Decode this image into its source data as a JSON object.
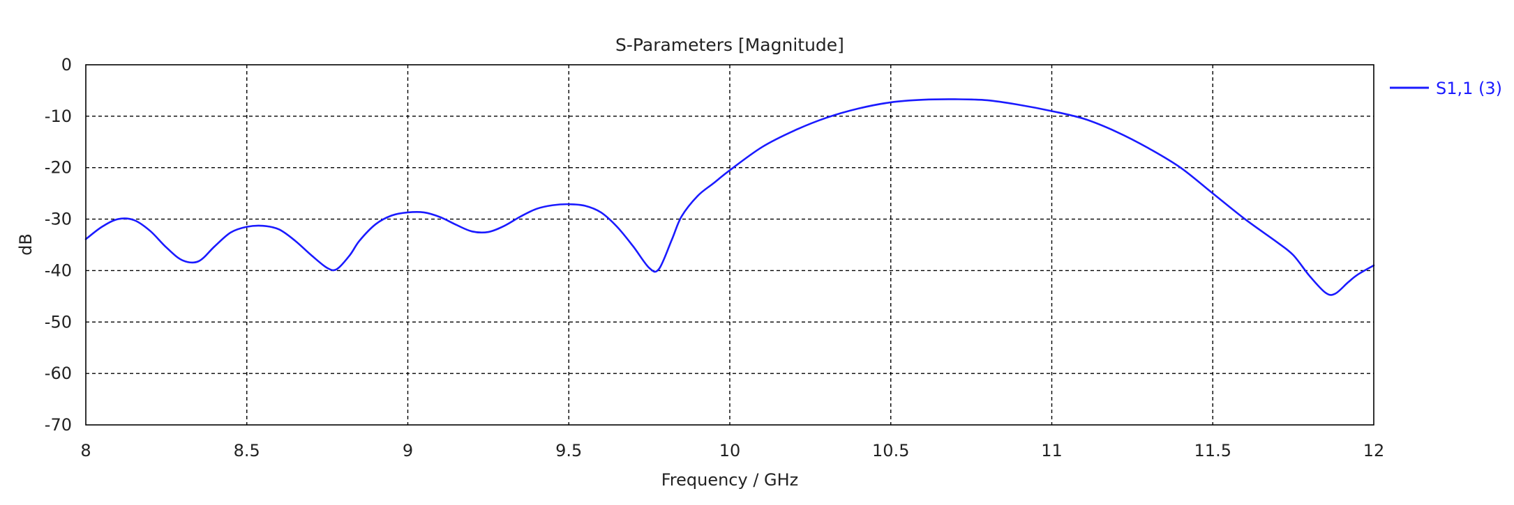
{
  "chart_data": {
    "type": "line",
    "title": "S-Parameters [Magnitude]",
    "xlabel": "Frequency / GHz",
    "ylabel": "dB",
    "xlim": [
      8,
      12
    ],
    "ylim": [
      -70,
      0
    ],
    "xticks": [
      8,
      8.5,
      9,
      9.5,
      10,
      10.5,
      11,
      11.5,
      12
    ],
    "xtick_labels": [
      "8",
      "8.5",
      "9",
      "9.5",
      "10",
      "10.5",
      "11",
      "11.5",
      "12"
    ],
    "yticks": [
      0,
      -10,
      -20,
      -30,
      -40,
      -50,
      -60,
      -70
    ],
    "ytick_labels": [
      "0",
      "-10",
      "-20",
      "-30",
      "-40",
      "-50",
      "-60",
      "-70"
    ],
    "grid": true,
    "legend_position": "right",
    "series": [
      {
        "name": "S1,1 (3)",
        "color": "#1a1aff",
        "x": [
          8.0,
          8.05,
          8.1,
          8.15,
          8.2,
          8.25,
          8.3,
          8.35,
          8.4,
          8.45,
          8.5,
          8.55,
          8.6,
          8.65,
          8.7,
          8.75,
          8.78,
          8.82,
          8.85,
          8.9,
          8.95,
          9.0,
          9.05,
          9.1,
          9.15,
          9.2,
          9.25,
          9.3,
          9.35,
          9.4,
          9.45,
          9.5,
          9.55,
          9.6,
          9.65,
          9.7,
          9.75,
          9.78,
          9.82,
          9.85,
          9.9,
          9.95,
          10.0,
          10.1,
          10.2,
          10.3,
          10.4,
          10.5,
          10.6,
          10.7,
          10.8,
          10.9,
          11.0,
          11.1,
          11.2,
          11.3,
          11.4,
          11.5,
          11.6,
          11.7,
          11.75,
          11.8,
          11.85,
          11.88,
          11.92,
          11.95,
          12.0
        ],
        "y": [
          -33.9,
          -31.5,
          -30.0,
          -30.2,
          -32.3,
          -35.5,
          -38.0,
          -38.2,
          -35.3,
          -32.6,
          -31.5,
          -31.3,
          -32.0,
          -34.2,
          -37.0,
          -39.5,
          -39.7,
          -37.0,
          -34.2,
          -31.0,
          -29.3,
          -28.7,
          -28.7,
          -29.6,
          -31.1,
          -32.4,
          -32.5,
          -31.3,
          -29.5,
          -28.0,
          -27.3,
          -27.1,
          -27.4,
          -28.7,
          -31.5,
          -35.3,
          -39.5,
          -39.7,
          -34.0,
          -29.5,
          -25.5,
          -23.0,
          -20.5,
          -16.0,
          -12.8,
          -10.3,
          -8.5,
          -7.3,
          -6.8,
          -6.7,
          -6.9,
          -7.8,
          -9.0,
          -10.5,
          -13.0,
          -16.2,
          -20.0,
          -25.0,
          -30.0,
          -34.5,
          -37.0,
          -41.0,
          -44.3,
          -44.5,
          -42.3,
          -40.8,
          -39.0
        ]
      }
    ]
  }
}
